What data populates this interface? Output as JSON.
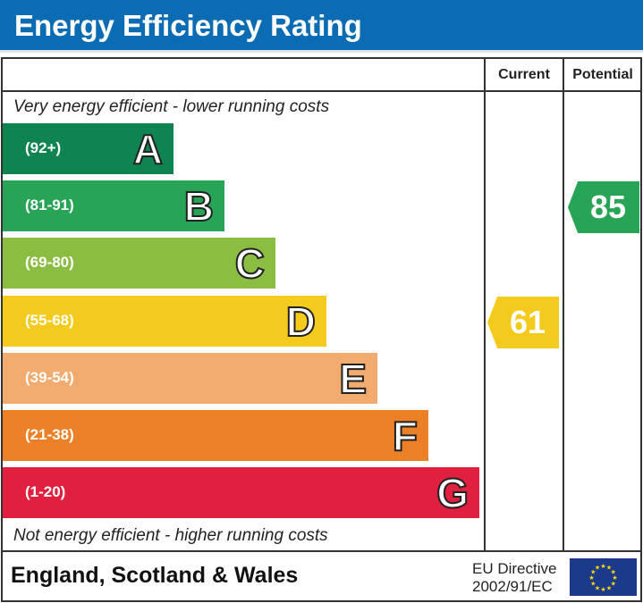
{
  "header": {
    "title": "Energy Efficiency Rating"
  },
  "columns": {
    "current": "Current",
    "potential": "Potential"
  },
  "captions": {
    "top": "Very energy efficient - lower running costs",
    "bottom": "Not energy efficient - higher running costs"
  },
  "footer": {
    "country": "England, Scotland & Wales",
    "directive_line1": "EU Directive",
    "directive_line2": "2002/91/EC",
    "flag_icon": "eu-flag-icon"
  },
  "chart_data": {
    "type": "bar",
    "bands": [
      {
        "letter": "A",
        "range": "(92+)",
        "color": "#108450"
      },
      {
        "letter": "B",
        "range": "(81-91)",
        "color": "#27a455"
      },
      {
        "letter": "C",
        "range": "(69-80)",
        "color": "#8cbd43"
      },
      {
        "letter": "D",
        "range": "(55-68)",
        "color": "#f4cb1c"
      },
      {
        "letter": "E",
        "range": "(39-54)",
        "color": "#f2ab6e"
      },
      {
        "letter": "F",
        "range": "(21-38)",
        "color": "#ec8026"
      },
      {
        "letter": "G",
        "range": "(1-20)",
        "color": "#e11f3e"
      }
    ],
    "current": {
      "value": 61,
      "band": "D",
      "color": "#f4cb1c"
    },
    "potential": {
      "value": 85,
      "band": "B",
      "color": "#27a455"
    }
  }
}
